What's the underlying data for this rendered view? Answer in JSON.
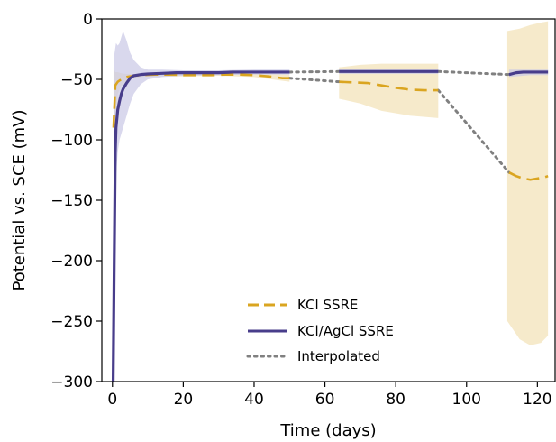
{
  "chart_data": {
    "type": "line",
    "xlabel": "Time (days)",
    "ylabel": "Potential vs. SCE (mV)",
    "xlim": [
      -3,
      125
    ],
    "ylim": [
      -300,
      0
    ],
    "xticks": [
      0,
      20,
      40,
      60,
      80,
      100,
      120
    ],
    "yticks": [
      0,
      -50,
      -100,
      -150,
      -200,
      -250,
      -300
    ],
    "grid": false,
    "legend_position": "lower-center",
    "colors": {
      "kcl": "#DAA520",
      "kcl_band": "#F5E6C2",
      "agcl": "#483D8B",
      "agcl_band": "#C9C8E6",
      "interp": "#808080"
    },
    "series": [
      {
        "name": "KCl SSRE",
        "style": "dashed",
        "segments": [
          [
            [
              0.3,
              -90
            ],
            [
              0.8,
              -55
            ],
            [
              1.5,
              -52
            ],
            [
              2.5,
              -50
            ],
            [
              4,
              -48
            ],
            [
              6,
              -47
            ],
            [
              8,
              -46.5
            ],
            [
              12,
              -46
            ],
            [
              16,
              -46
            ],
            [
              20,
              -46.5
            ],
            [
              24,
              -46.5
            ],
            [
              28,
              -46.5
            ],
            [
              32,
              -46
            ],
            [
              36,
              -46
            ],
            [
              40,
              -46.5
            ],
            [
              44,
              -47.5
            ],
            [
              48,
              -49
            ],
            [
              50,
              -49
            ]
          ],
          [
            [
              64,
              -52
            ],
            [
              68,
              -52.5
            ],
            [
              72,
              -53
            ],
            [
              76,
              -55
            ],
            [
              80,
              -57
            ],
            [
              84,
              -58.5
            ],
            [
              88,
              -59
            ],
            [
              92,
              -59
            ]
          ],
          [
            [
              112,
              -127
            ],
            [
              114,
              -130
            ],
            [
              116,
              -132
            ],
            [
              118,
              -133
            ],
            [
              120,
              -132
            ],
            [
              122,
              -131
            ],
            [
              123,
              -130
            ]
          ]
        ],
        "band": [
          [
            [
              0.3,
              -140,
              -40
            ],
            [
              0.8,
              -80,
              -44
            ],
            [
              1.5,
              -62,
              -44
            ],
            [
              2.5,
              -55,
              -45
            ],
            [
              4,
              -51,
              -45.5
            ],
            [
              6,
              -49,
              -45.5
            ],
            [
              10,
              -47.5,
              -45
            ],
            [
              20,
              -47.5,
              -45.5
            ],
            [
              30,
              -47,
              -45.5
            ],
            [
              40,
              -48,
              -45.5
            ],
            [
              50,
              -52,
              -46
            ]
          ],
          [
            [
              64,
              -66,
              -40
            ],
            [
              70,
              -70,
              -38
            ],
            [
              76,
              -76,
              -37
            ],
            [
              84,
              -80,
              -37
            ],
            [
              92,
              -82,
              -37
            ]
          ],
          [
            [
              111.5,
              -250,
              -10
            ],
            [
              115,
              -265,
              -8
            ],
            [
              118,
              -270,
              -5
            ],
            [
              121,
              -268,
              -3
            ],
            [
              123,
              -262,
              -2
            ]
          ]
        ]
      },
      {
        "name": "KCl/AgCl SSRE",
        "style": "solid",
        "segments": [
          [
            [
              0.2,
              -300
            ],
            [
              0.5,
              -200
            ],
            [
              0.8,
              -110
            ],
            [
              1,
              -90
            ],
            [
              1.5,
              -75
            ],
            [
              2,
              -68
            ],
            [
              2.5,
              -62
            ],
            [
              3,
              -58
            ],
            [
              4,
              -53
            ],
            [
              5,
              -49
            ],
            [
              6,
              -47
            ],
            [
              8,
              -46
            ],
            [
              10,
              -45.5
            ],
            [
              14,
              -45
            ],
            [
              18,
              -44.5
            ],
            [
              22,
              -44.5
            ],
            [
              26,
              -44.5
            ],
            [
              30,
              -44.5
            ],
            [
              34,
              -44
            ],
            [
              38,
              -44
            ],
            [
              42,
              -44
            ],
            [
              46,
              -44
            ],
            [
              50,
              -44
            ]
          ],
          [
            [
              64,
              -43.5
            ],
            [
              70,
              -43.5
            ],
            [
              76,
              -43.5
            ],
            [
              82,
              -43.5
            ],
            [
              88,
              -43.5
            ],
            [
              92,
              -43.5
            ]
          ],
          [
            [
              112,
              -46
            ],
            [
              114,
              -44.5
            ],
            [
              116,
              -44
            ],
            [
              118,
              -44
            ],
            [
              120,
              -44
            ],
            [
              123,
              -44
            ]
          ]
        ],
        "band": [
          [
            [
              0.5,
              -300,
              -30
            ],
            [
              1,
              -130,
              -20
            ],
            [
              1.5,
              -110,
              -22
            ],
            [
              2,
              -100,
              -20
            ],
            [
              3,
              -90,
              -10
            ],
            [
              4,
              -80,
              -18
            ],
            [
              5,
              -70,
              -28
            ],
            [
              6,
              -62,
              -34
            ],
            [
              8,
              -54,
              -40
            ],
            [
              10,
              -50,
              -42
            ],
            [
              14,
              -48,
              -42
            ],
            [
              20,
              -47,
              -42.5
            ],
            [
              30,
              -46.5,
              -42.5
            ],
            [
              40,
              -46,
              -42
            ],
            [
              50,
              -46,
              -42
            ]
          ],
          [
            [
              64,
              -45.5,
              -41.5
            ],
            [
              78,
              -45.5,
              -41.5
            ],
            [
              92,
              -45.5,
              -41.5
            ]
          ],
          [
            [
              112,
              -48,
              -42
            ],
            [
              118,
              -46.5,
              -42
            ],
            [
              123,
              -46.5,
              -42
            ]
          ]
        ]
      },
      {
        "name": "Interpolated",
        "style": "dotted",
        "segments": [
          [
            [
              50,
              -49
            ],
            [
              64,
              -52
            ]
          ],
          [
            [
              92,
              -59
            ],
            [
              112,
              -127
            ]
          ],
          [
            [
              50,
              -44
            ],
            [
              64,
              -43.5
            ]
          ],
          [
            [
              92,
              -43.5
            ],
            [
              112,
              -46
            ]
          ]
        ]
      }
    ]
  }
}
